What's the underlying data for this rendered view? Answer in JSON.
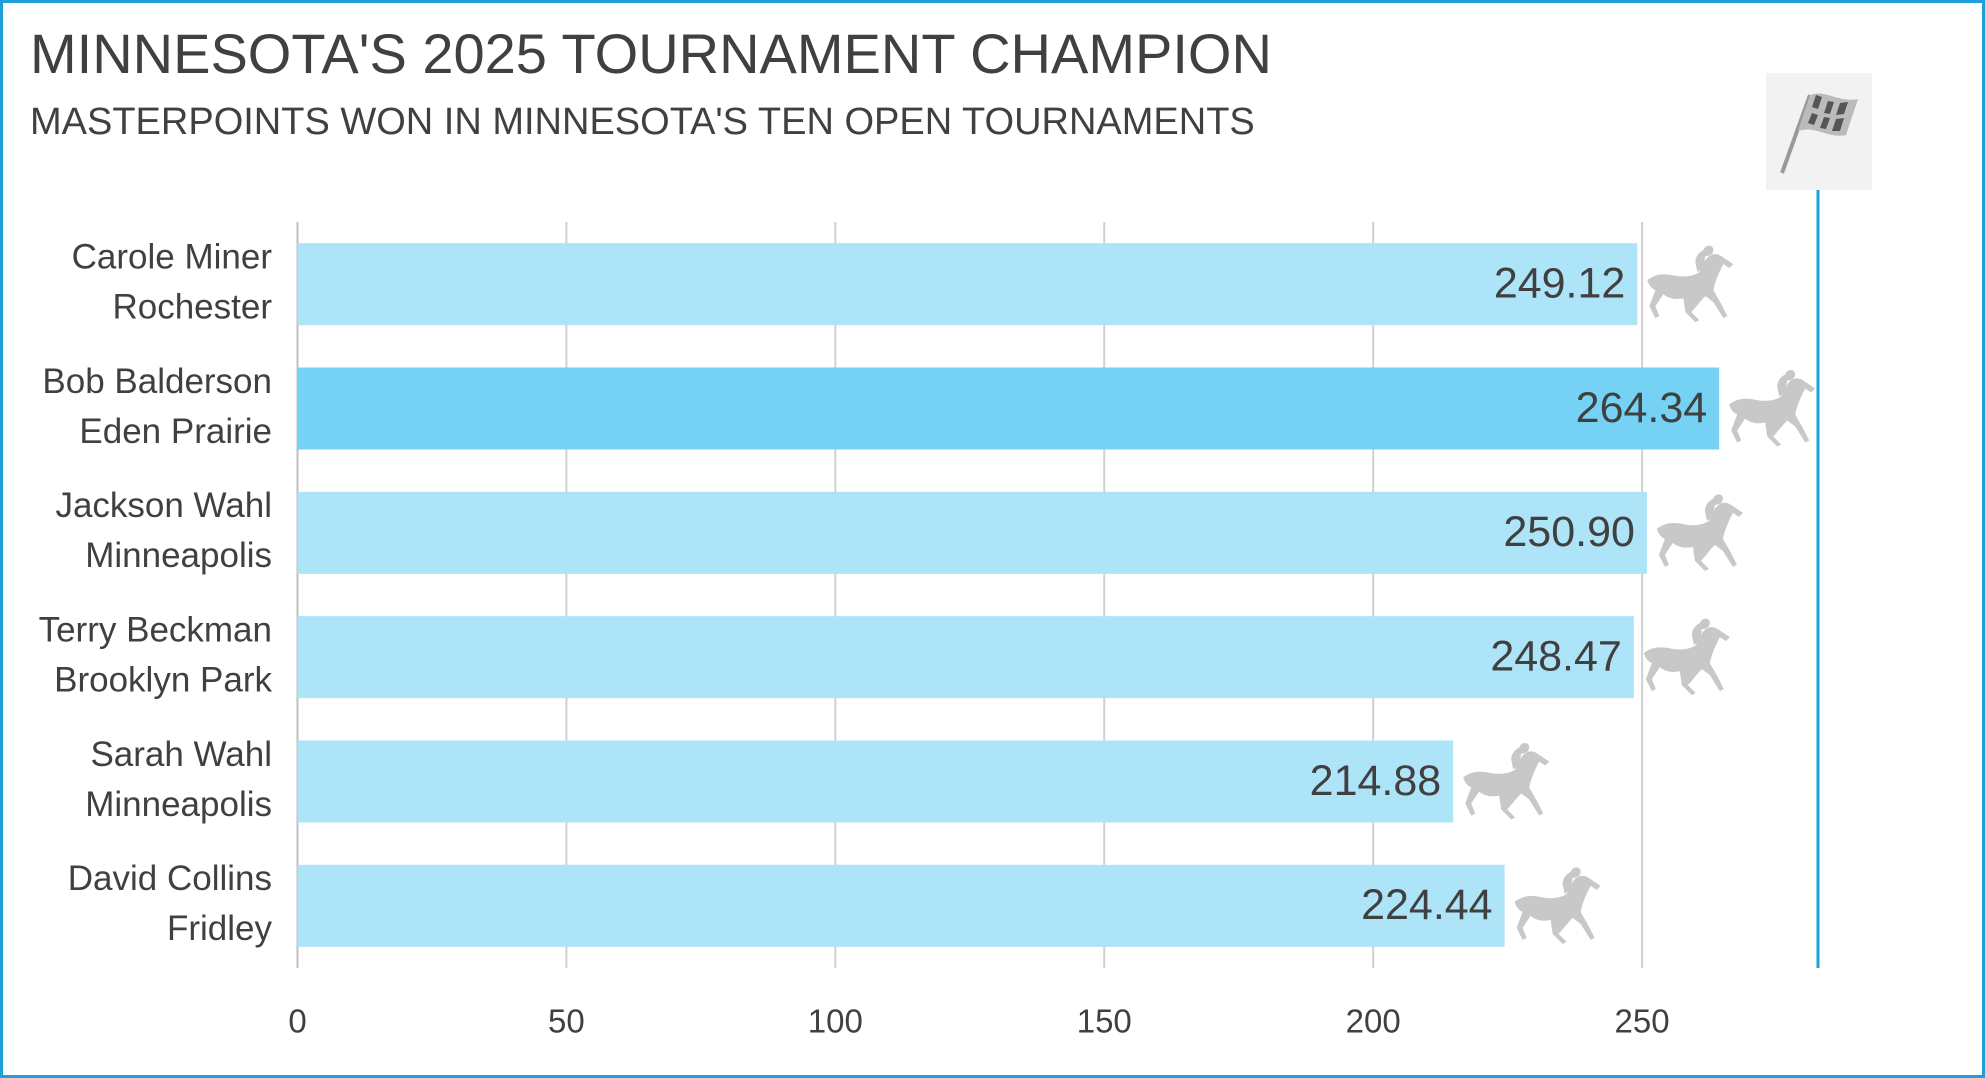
{
  "chart_data": {
    "type": "hbar",
    "title": "MINNESOTA'S 2025 TOURNAMENT CHAMPION",
    "subtitle": "MASTERPOINTS WON IN MINNESOTA'S TEN OPEN TOURNAMENTS",
    "categories": [
      [
        "Carole Miner",
        "Rochester"
      ],
      [
        "Bob Balderson",
        "Eden Prairie"
      ],
      [
        "Jackson Wahl",
        "Minneapolis"
      ],
      [
        "Terry Beckman",
        "Brooklyn Park"
      ],
      [
        "Sarah Wahl",
        "Minneapolis"
      ],
      [
        "David Collins",
        "Fridley"
      ]
    ],
    "values": [
      249.12,
      264.34,
      250.9,
      248.47,
      214.88,
      224.44
    ],
    "value_labels": [
      "249.12",
      "264.34",
      "250.90",
      "248.47",
      "214.88",
      "224.44"
    ],
    "colors": [
      "#ade4f8",
      "#76d2f5",
      "#ade4f8",
      "#ade4f8",
      "#ade4f8",
      "#ade4f8"
    ],
    "xlim": [
      0,
      300
    ],
    "xticks": [
      0,
      50,
      100,
      150,
      200,
      250
    ],
    "grid": true
  }
}
